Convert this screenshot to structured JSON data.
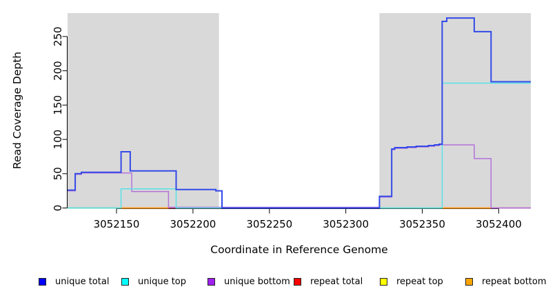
{
  "chart": {
    "xlabel": "Coordinate in Reference Genome",
    "ylabel": "Read Coverage Depth"
  },
  "chart_data": {
    "type": "line",
    "step": true,
    "title": "",
    "xlabel": "Coordinate in Reference Genome",
    "ylabel": "Read Coverage Depth",
    "xlim": [
      3052118,
      3052421
    ],
    "ylim": [
      0,
      285
    ],
    "x_ticks": [
      3052150,
      3052200,
      3052250,
      3052300,
      3052350,
      3052400
    ],
    "y_ticks": [
      0,
      50,
      100,
      150,
      200,
      250
    ],
    "grid": false,
    "plot_background": "#ffffff",
    "shaded_region_color": "#d9d9d9",
    "shaded_regions": [
      {
        "label": "shaded-region-left",
        "x1": 3052118,
        "x2": 3052217
      },
      {
        "label": "shaded-region-right",
        "x1": 3052322,
        "x2": 3052421
      }
    ],
    "series": [
      {
        "name": "repeat total",
        "color": "#d04a6a",
        "width": 1.5,
        "points": [
          [
            3052118,
            0
          ],
          [
            3052421,
            0
          ]
        ]
      },
      {
        "name": "repeat top (left segment, blended with unique top)",
        "color": "#90cc90",
        "width": 2,
        "points": [
          [
            3052118,
            0
          ],
          [
            3052152,
            0
          ]
        ]
      },
      {
        "name": "repeat top (right segment, blended with unique top)",
        "color": "#90cc90",
        "width": 2,
        "points": [
          [
            3052322,
            0
          ],
          [
            3052363,
            0
          ]
        ]
      },
      {
        "name": "repeat bottom (left segment)",
        "color": "#ff9b1e",
        "width": 2,
        "points": [
          [
            3052152,
            0
          ],
          [
            3052184,
            0
          ]
        ]
      },
      {
        "name": "repeat bottom (right segment)",
        "color": "#ff9b1e",
        "width": 2,
        "points": [
          [
            3052363,
            0
          ],
          [
            3052395,
            0
          ]
        ]
      },
      {
        "name": "unique bottom",
        "color": "#b273d9",
        "width": 1.5,
        "points": [
          [
            3052118,
            25
          ],
          [
            3052123,
            25
          ],
          [
            3052123,
            49
          ],
          [
            3052127,
            49
          ],
          [
            3052127,
            51
          ],
          [
            3052160,
            51
          ],
          [
            3052160,
            24
          ],
          [
            3052184,
            24
          ],
          [
            3052184,
            1
          ],
          [
            3052322,
            1
          ],
          [
            3052322,
            16
          ],
          [
            3052330,
            16
          ],
          [
            3052330,
            85
          ],
          [
            3052332,
            85
          ],
          [
            3052332,
            87
          ],
          [
            3052340,
            87
          ],
          [
            3052340,
            88
          ],
          [
            3052346,
            88
          ],
          [
            3052346,
            89
          ],
          [
            3052354,
            89
          ],
          [
            3052354,
            90
          ],
          [
            3052358,
            90
          ],
          [
            3052358,
            91
          ],
          [
            3052361,
            91
          ],
          [
            3052361,
            92
          ],
          [
            3052384,
            92
          ],
          [
            3052384,
            72
          ],
          [
            3052395,
            72
          ],
          [
            3052395,
            0
          ],
          [
            3052421,
            0
          ]
        ]
      },
      {
        "name": "unique top",
        "color": "#57e2e8",
        "width": 1.5,
        "points": [
          [
            3052118,
            0
          ],
          [
            3052153,
            0
          ],
          [
            3052153,
            28
          ],
          [
            3052189,
            28
          ],
          [
            3052189,
            0
          ],
          [
            3052363,
            0
          ],
          [
            3052363,
            182
          ],
          [
            3052421,
            182
          ]
        ]
      },
      {
        "name": "unique total",
        "color": "#3349e8",
        "width": 2,
        "points": [
          [
            3052118,
            26
          ],
          [
            3052123,
            26
          ],
          [
            3052123,
            50
          ],
          [
            3052127,
            50
          ],
          [
            3052127,
            52
          ],
          [
            3052153,
            52
          ],
          [
            3052153,
            82
          ],
          [
            3052159,
            82
          ],
          [
            3052159,
            54
          ],
          [
            3052189,
            54
          ],
          [
            3052189,
            27
          ],
          [
            3052215,
            27
          ],
          [
            3052215,
            25
          ],
          [
            3052219,
            25
          ],
          [
            3052219,
            0
          ],
          [
            3052322,
            0
          ],
          [
            3052322,
            17
          ],
          [
            3052330,
            17
          ],
          [
            3052330,
            86
          ],
          [
            3052332,
            86
          ],
          [
            3052332,
            88
          ],
          [
            3052340,
            88
          ],
          [
            3052340,
            89
          ],
          [
            3052346,
            89
          ],
          [
            3052346,
            90
          ],
          [
            3052354,
            90
          ],
          [
            3052354,
            91
          ],
          [
            3052358,
            91
          ],
          [
            3052358,
            92
          ],
          [
            3052361,
            92
          ],
          [
            3052361,
            93
          ],
          [
            3052363,
            93
          ],
          [
            3052363,
            272
          ],
          [
            3052366,
            272
          ],
          [
            3052366,
            277
          ],
          [
            3052384,
            277
          ],
          [
            3052384,
            257
          ],
          [
            3052395,
            257
          ],
          [
            3052395,
            184
          ],
          [
            3052421,
            184
          ]
        ]
      }
    ],
    "legend_position": "bottom"
  },
  "legend": {
    "items": [
      {
        "label": "unique total",
        "color": "#0000ff"
      },
      {
        "label": "unique top",
        "color": "#00ffff"
      },
      {
        "label": "unique bottom",
        "color": "#a020f0"
      },
      {
        "label": "repeat total",
        "color": "#ff0000"
      },
      {
        "label": "repeat top",
        "color": "#ffff00"
      },
      {
        "label": "repeat bottom",
        "color": "#ffa500"
      }
    ]
  }
}
